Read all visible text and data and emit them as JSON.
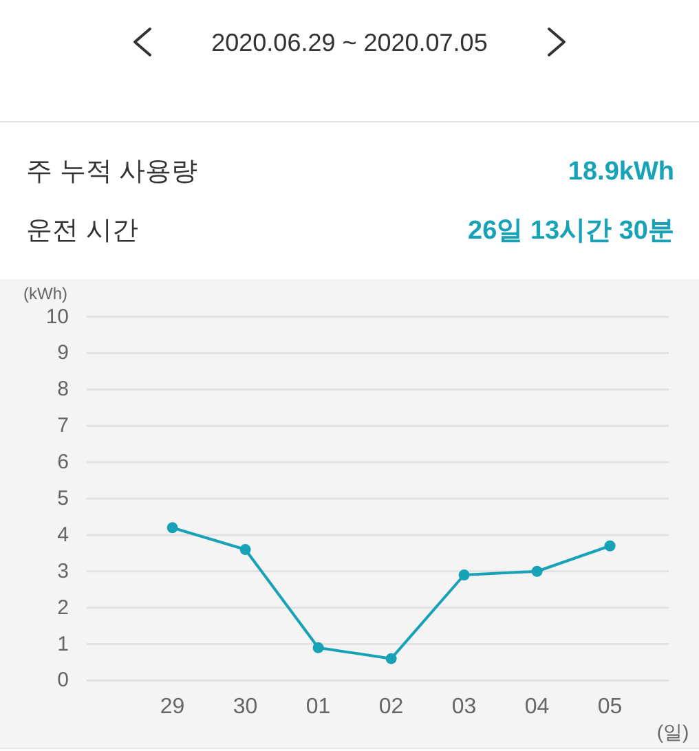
{
  "chart_data": {
    "type": "line",
    "title": "2020.06.29 ~ 2020.07.05",
    "annotations": [
      "주 누적 사용량",
      "18.9kWh",
      "운전 시간",
      "26일 13시간 30분"
    ],
    "xlabel": "(일)",
    "ylabel": "(kWh)",
    "categories": [
      "29",
      "30",
      "01",
      "02",
      "03",
      "04",
      "05"
    ],
    "series": [
      {
        "color": "#17a2b8",
        "values": [
          4.2,
          3.6,
          0.9,
          0.6,
          2.9,
          3.0,
          3.7
        ]
      }
    ],
    "ylim": [
      0,
      10
    ],
    "yticks": [
      0,
      1,
      2,
      3,
      4,
      5,
      6,
      7,
      8,
      9,
      10
    ],
    "grid": "y",
    "marker": "circle",
    "line_style": "solid"
  }
}
